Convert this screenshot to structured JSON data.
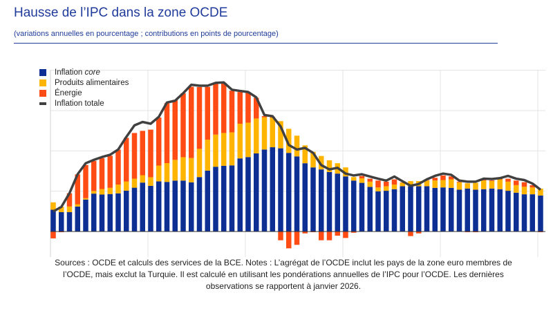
{
  "title": "Hausse de l’IPC dans la zone OCDE",
  "subtitle": "(variations annuelles en pourcentage ; contributions en points de pourcentage)",
  "notes": "Sources : OCDE et calculs des services de la BCE. Notes : L’agrégat de l’OCDE inclut les pays de la zone euro membres de l’OCDE, mais exclut la Turquie. Il est calculé en utilisant les pondérations annuelles de l’IPC pour l’OCDE. Les dernières observations se rapportent à janvier 2026.",
  "legend": {
    "core_prefix": "Inflation ",
    "core_italic": "core",
    "food": "Produits alimentaires",
    "energy": "Énergie",
    "total": "Inflation totale"
  },
  "colors": {
    "core": "#0d2f94",
    "food": "#ffb400",
    "energy": "#ff4b14",
    "total": "#404040",
    "title": "#1f3b9b"
  },
  "chart_data": {
    "type": "bar",
    "stacked": true,
    "x_start": "2021-01",
    "x_end": "2026-01",
    "x_frequency": "monthly",
    "ylim": [
      -1.8,
      12
    ],
    "y_gridlines": [
      0,
      3,
      6,
      9,
      12
    ],
    "grid": true,
    "legend_position": "top-left",
    "series": [
      {
        "name": "Inflation core",
        "kind": "bar",
        "values": [
          1.62,
          1.44,
          1.44,
          1.86,
          2.38,
          2.82,
          2.75,
          2.79,
          2.84,
          3.04,
          3.26,
          3.64,
          3.4,
          3.73,
          3.69,
          3.79,
          3.79,
          3.66,
          4.05,
          4.53,
          4.82,
          4.89,
          4.92,
          5.44,
          5.54,
          5.81,
          6.1,
          6.27,
          6.19,
          5.85,
          5.59,
          5.08,
          4.77,
          4.62,
          4.43,
          4.31,
          4.1,
          3.79,
          3.62,
          3.32,
          2.99,
          3.03,
          3.15,
          3.37,
          3.37,
          3.37,
          3.37,
          3.25,
          3.28,
          3.25,
          3.11,
          3.2,
          3.11,
          3.15,
          3.2,
          3.15,
          3.03,
          2.89,
          2.77,
          2.77,
          2.68
        ]
      },
      {
        "name": "Produits alimentaires",
        "kind": "bar",
        "values": [
          0.55,
          0.41,
          0.42,
          0.17,
          0.1,
          0.2,
          0.41,
          0.46,
          0.65,
          0.68,
          0.67,
          0.55,
          0.64,
          1.18,
          1.4,
          1.54,
          1.74,
          1.81,
          2.1,
          2.3,
          2.39,
          2.44,
          2.46,
          2.58,
          2.56,
          2.6,
          2.4,
          2.2,
          2.02,
          1.79,
          1.54,
          1.33,
          1.16,
          1.0,
          0.87,
          0.77,
          0.67,
          0.26,
          0.34,
          0.39,
          0.29,
          0.34,
          0.34,
          0.26,
          0.38,
          0.38,
          0.43,
          0.55,
          0.55,
          0.63,
          0.55,
          0.39,
          0.51,
          0.65,
          0.56,
          0.73,
          0.68,
          0.56,
          0.56,
          0.51,
          0.51
        ]
      },
      {
        "name": "Énergie",
        "kind": "bar",
        "values": [
          -0.51,
          -0.05,
          0.99,
          2.22,
          2.47,
          2.23,
          2.3,
          2.39,
          2.6,
          3.25,
          3.4,
          3.3,
          3.54,
          3.57,
          4.46,
          4.46,
          4.75,
          5.3,
          4.6,
          3.93,
          3.81,
          3.73,
          3.1,
          2.36,
          2.21,
          1.54,
          0.09,
          0.05,
          -0.65,
          -1.25,
          -0.99,
          -0.14,
          -0.05,
          -0.65,
          -0.65,
          -0.31,
          -0.48,
          -0.09,
          0.17,
          0.22,
          0.51,
          0.34,
          0.39,
          0.02,
          -0.34,
          -0.14,
          0.02,
          0.2,
          0.34,
          0.22,
          0.05,
          -0.05,
          -0.05,
          0.05,
          0.05,
          0.05,
          0.22,
          0.34,
          0.34,
          0.17,
          -0.05
        ]
      },
      {
        "name": "Inflation totale",
        "kind": "line",
        "values": [
          1.49,
          1.83,
          2.85,
          4.26,
          5.08,
          5.33,
          5.54,
          5.71,
          6.1,
          7.04,
          7.9,
          8.15,
          8.02,
          8.53,
          9.6,
          9.73,
          10.29,
          10.92,
          10.85,
          10.85,
          11.06,
          11.09,
          10.55,
          10.46,
          10.38,
          9.98,
          8.67,
          8.58,
          7.81,
          6.44,
          6.1,
          6.22,
          5.85,
          4.94,
          4.62,
          4.74,
          4.31,
          4.17,
          4.26,
          4.09,
          3.93,
          3.79,
          4.09,
          3.74,
          3.4,
          3.54,
          3.88,
          4.14,
          4.31,
          4.22,
          3.79,
          3.71,
          3.71,
          3.93,
          3.91,
          3.97,
          4.14,
          3.93,
          3.83,
          3.57,
          3.11
        ]
      }
    ]
  }
}
